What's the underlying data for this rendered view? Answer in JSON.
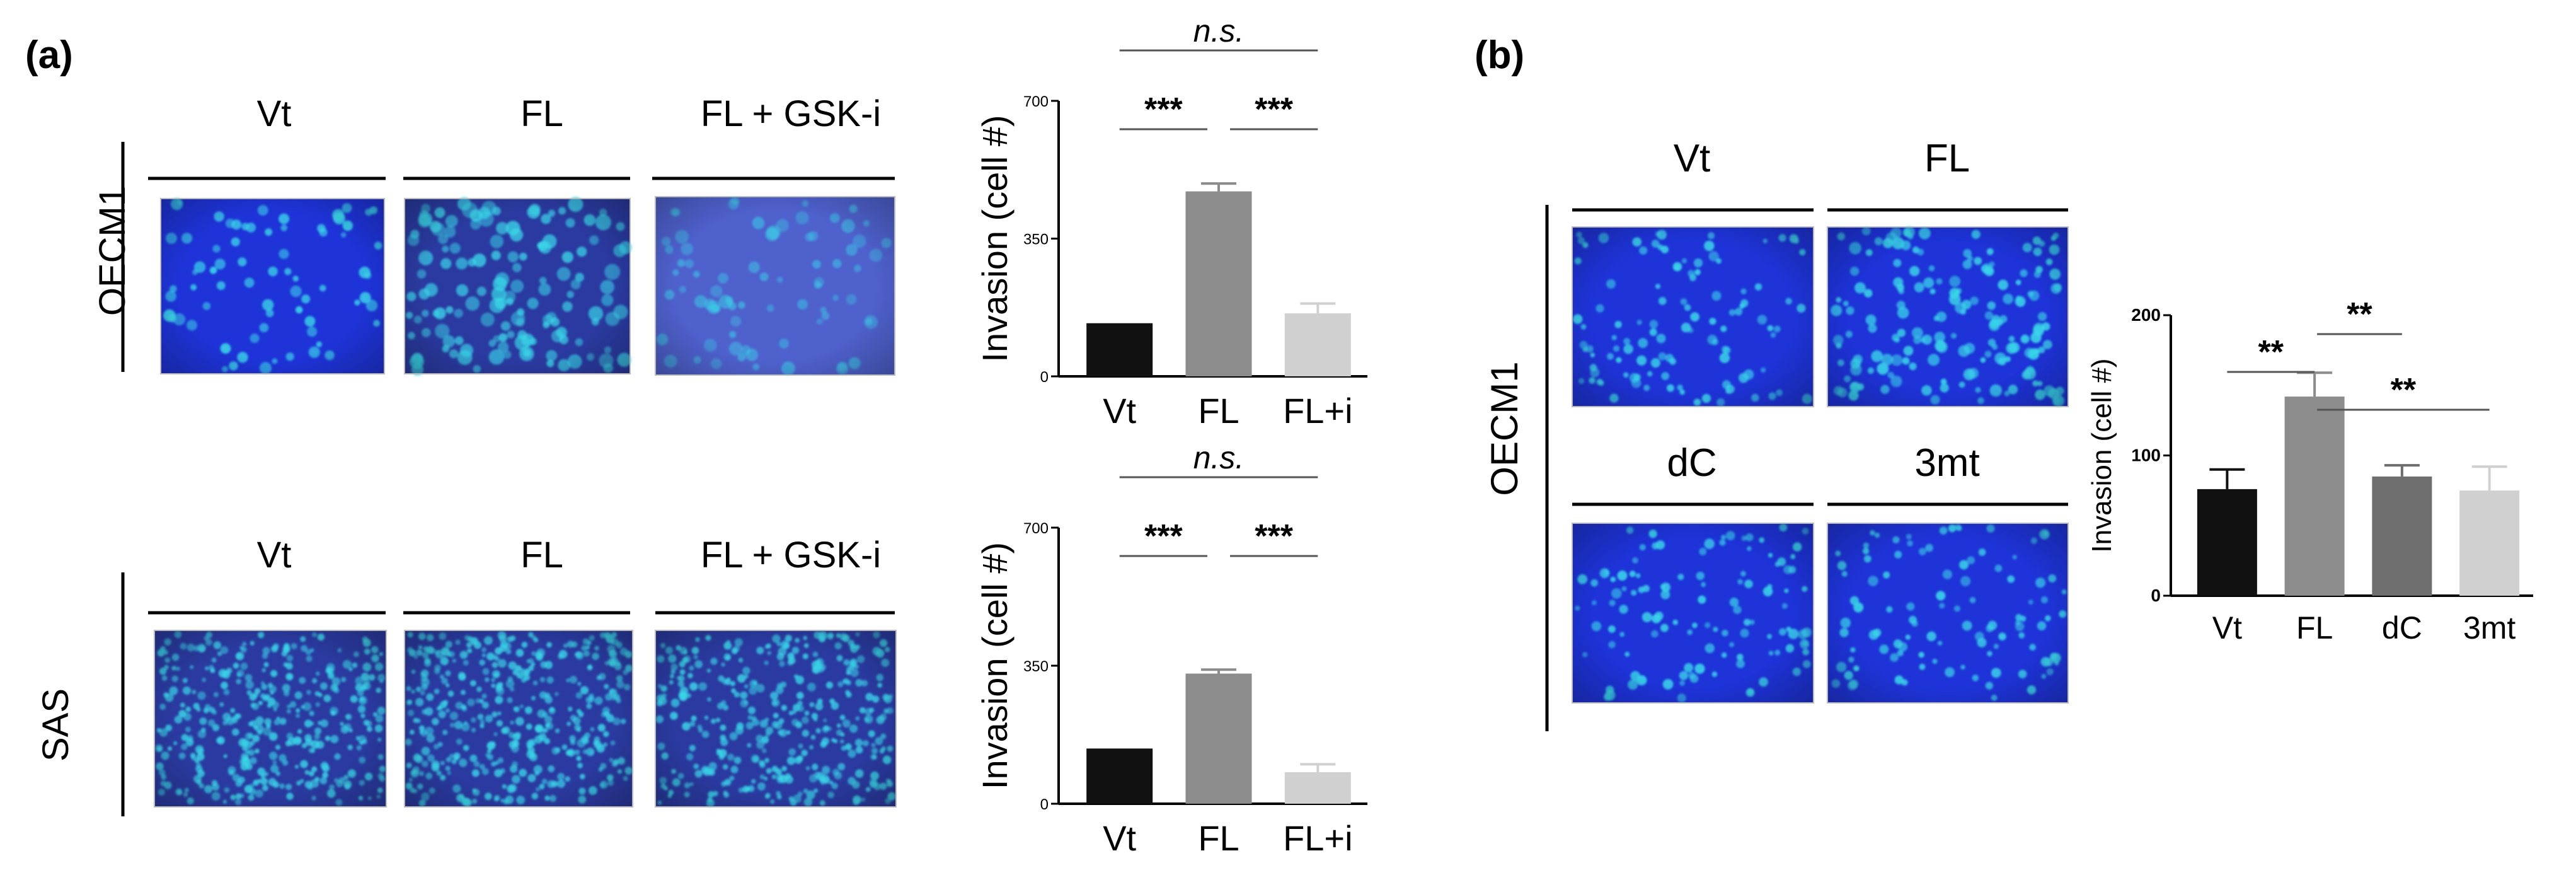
{
  "panel_a": {
    "label": "(a)",
    "rows": [
      {
        "cell_line": "OECM1",
        "columns": [
          "Vt",
          "FL",
          "FL + GSK-i"
        ]
      },
      {
        "cell_line": "SAS",
        "columns": [
          "Vt",
          "FL",
          "FL + GSK-i"
        ]
      }
    ]
  },
  "panel_b": {
    "label": "(b)",
    "cell_line": "OECM1",
    "grid_labels": [
      "Vt",
      "FL",
      "dC",
      "3mt"
    ]
  },
  "colors": {
    "micro_bg": "#1e33d8",
    "micro_bg_dark": "#2a3aa0",
    "cell": "#38d6e8",
    "bar_black": "#111111",
    "bar_gray": "#8c8c8c",
    "bar_dark_gray": "#6e6e6e",
    "bar_light": "#d0d0d0"
  },
  "chart_data": [
    {
      "id": "a_oecm1",
      "type": "bar",
      "categories": [
        "Vt",
        "FL",
        "FL+i"
      ],
      "values": [
        135,
        470,
        160
      ],
      "errors": [
        0,
        20,
        25
      ],
      "ylabel": "Invasion (cell #)",
      "ylim": [
        0,
        700
      ],
      "yticks": [
        "0",
        "350",
        "700"
      ],
      "significance": [
        {
          "pair": [
            0,
            2
          ],
          "label": "n.s.",
          "italic": true
        },
        {
          "pair": [
            0,
            1
          ],
          "label": "***"
        },
        {
          "pair": [
            1,
            2
          ],
          "label": "***"
        }
      ]
    },
    {
      "id": "a_sas",
      "type": "bar",
      "categories": [
        "Vt",
        "FL",
        "FL+i"
      ],
      "values": [
        140,
        330,
        80
      ],
      "errors": [
        0,
        10,
        20
      ],
      "ylabel": "Invasion (cell #)",
      "ylim": [
        0,
        700
      ],
      "yticks": [
        "0",
        "350",
        "700"
      ],
      "significance": [
        {
          "pair": [
            0,
            2
          ],
          "label": "n.s.",
          "italic": true
        },
        {
          "pair": [
            0,
            1
          ],
          "label": "***"
        },
        {
          "pair": [
            1,
            2
          ],
          "label": "***"
        }
      ]
    },
    {
      "id": "b_oecm1",
      "type": "bar",
      "categories": [
        "Vt",
        "FL",
        "dC",
        "3mt"
      ],
      "values": [
        76,
        142,
        85,
        75
      ],
      "errors": [
        14,
        17,
        8,
        17
      ],
      "ylabel": "Invasion (cell #)",
      "ylim": [
        0,
        200
      ],
      "yticks": [
        "0",
        "100",
        "200"
      ],
      "significance": [
        {
          "pair": [
            0,
            1
          ],
          "label": "**"
        },
        {
          "pair": [
            1,
            2
          ],
          "label": "**"
        },
        {
          "pair": [
            1,
            3
          ],
          "label": "**"
        }
      ]
    }
  ]
}
